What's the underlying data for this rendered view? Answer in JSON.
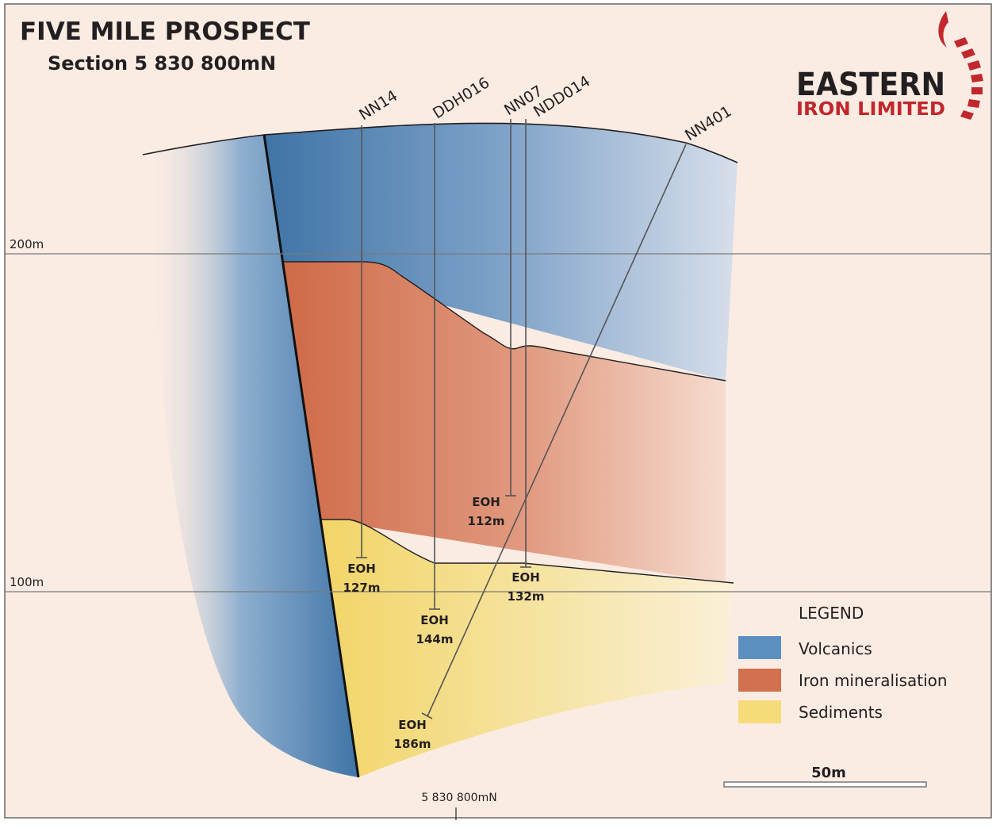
{
  "title": "FIVE MILE PROSPECT",
  "subtitle": "Section 5 830 800mN",
  "logo": {
    "line1": "EASTERN",
    "line2": "IRON LIMITED",
    "colors": {
      "dark": "#231f20",
      "red": "#c1272d"
    }
  },
  "elevations": [
    {
      "label": "200m",
      "value": 200
    },
    {
      "label": "100m",
      "value": 100
    }
  ],
  "drillholes": [
    {
      "name": "NN14",
      "eoh_label": "EOH",
      "depth_label": "127m"
    },
    {
      "name": "DDH016",
      "eoh_label": "EOH",
      "depth_label": "144m"
    },
    {
      "name": "NN07",
      "eoh_label": "EOH",
      "depth_label": "112m"
    },
    {
      "name": "NDD014",
      "eoh_label": "EOH",
      "depth_label": "132m"
    },
    {
      "name": "NN401",
      "eoh_label": "EOH",
      "depth_label": "186m"
    }
  ],
  "legend": {
    "title": "LEGEND",
    "items": [
      {
        "label": "Volcanics",
        "color": "#5b8fc0"
      },
      {
        "label": "Iron mineralisation",
        "color": "#d0704e"
      },
      {
        "label": "Sediments",
        "color": "#f5dc7a"
      }
    ]
  },
  "scale_bar": {
    "label": "50m"
  },
  "section_marker": {
    "label": "5 830 800mN"
  },
  "colors": {
    "background": "#fbece3",
    "frame": "#555555"
  }
}
